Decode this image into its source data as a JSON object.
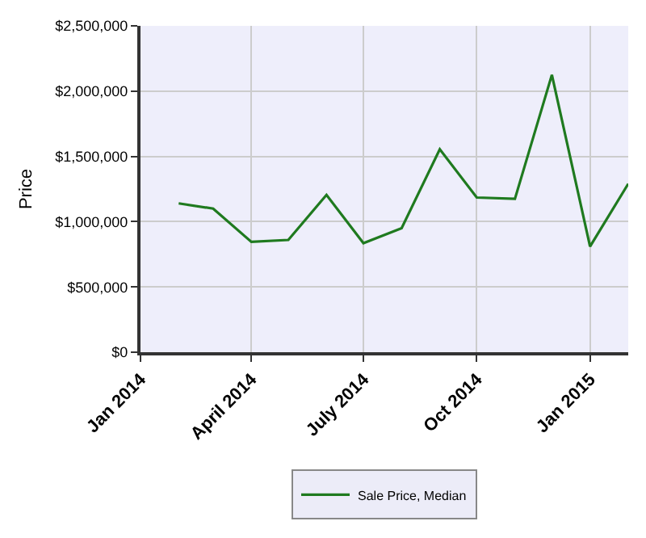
{
  "chart_data": {
    "type": "line",
    "ylabel": "Price",
    "x": [
      "2014-02",
      "2014-03",
      "2014-04",
      "2014-05",
      "2014-06",
      "2014-07",
      "2014-08",
      "2014-09",
      "2014-10",
      "2014-11",
      "2014-12",
      "2015-01",
      "2015-02"
    ],
    "series": [
      {
        "name": "Sale Price, Median",
        "color": "#1f7a1f",
        "values": [
          1140000,
          1100000,
          845000,
          860000,
          1205000,
          835000,
          950000,
          1555000,
          1185000,
          1175000,
          2125000,
          810000,
          1290000
        ]
      }
    ],
    "xlim": [
      "2014-01",
      "2015-02"
    ],
    "xticks": [
      {
        "value": "2014-01",
        "label": "Jan 2014"
      },
      {
        "value": "2014-04",
        "label": "April 2014"
      },
      {
        "value": "2014-07",
        "label": "July 2014"
      },
      {
        "value": "2014-10",
        "label": "Oct 2014"
      },
      {
        "value": "2015-01",
        "label": "Jan 2015"
      }
    ],
    "ylim": [
      0,
      2500000
    ],
    "yticks": [
      {
        "value": 0,
        "label": "$0"
      },
      {
        "value": 500000,
        "label": "$500,000"
      },
      {
        "value": 1000000,
        "label": "$1,000,000"
      },
      {
        "value": 1500000,
        "label": "$1,500,000"
      },
      {
        "value": 2000000,
        "label": "$2,000,000"
      },
      {
        "value": 2500000,
        "label": "$2,500,000"
      }
    ],
    "grid": true,
    "legend": "bottom",
    "marker": "none",
    "line_style": "solid"
  }
}
